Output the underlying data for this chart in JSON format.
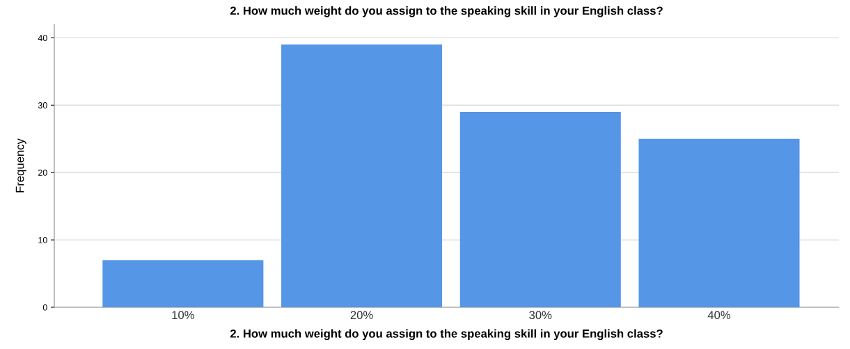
{
  "chart_data": {
    "type": "bar",
    "title": "2. How much weight do you assign to the speaking skill in your English class?",
    "xlabel": "2. How much weight do you assign to the speaking skill in your English class?",
    "ylabel": "Frequency",
    "categories": [
      "10%",
      "20%",
      "30%",
      "40%"
    ],
    "values": [
      7,
      39,
      29,
      25
    ],
    "color": "#5596e6",
    "ylim": [
      0,
      42
    ],
    "yticks": [
      0,
      10,
      20,
      30,
      40
    ],
    "grid": "y"
  }
}
